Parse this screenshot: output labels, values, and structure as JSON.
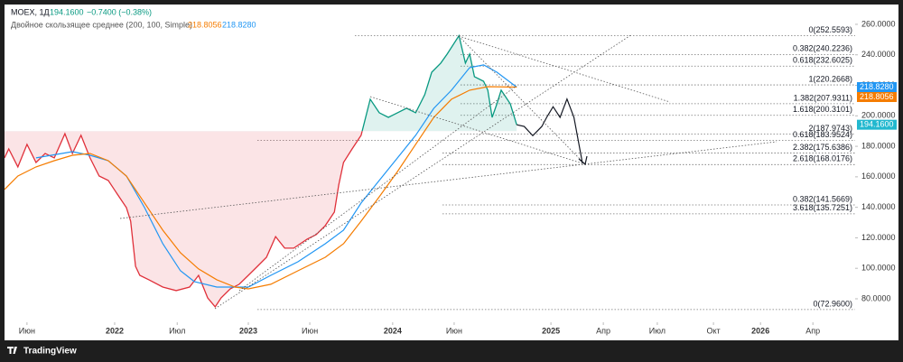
{
  "chart_data": {
    "type": "baseline",
    "legend": {
      "symbol": "MOEX, 1Д",
      "last": "194.1600",
      "change": "−0.7400 (−0.38%)",
      "indicator": "Двойное скользящее среднее (200, 100, Simple)",
      "ma200": "218.8056",
      "ma100": "218.8280"
    },
    "baseline": 190,
    "above_color": "#089981",
    "below_color": "#e0303a",
    "series": [
      {
        "color": "#e0303a",
        "x": [
          -206,
          -198,
          -181,
          -164,
          -147,
          -130,
          -113,
          -93,
          -79,
          -63,
          -46,
          -29,
          -12,
          5,
          22,
          30,
          39,
          47,
          64,
          90,
          115,
          140,
          157,
          174,
          188,
          199,
          216,
          233,
          250,
          267,
          284,
          301,
          318,
          335,
          360,
          377,
          394,
          411,
          419,
          428,
          444,
          461,
          478,
          495,
          512,
          529,
          546,
          563,
          580,
          593,
          610,
          622,
          644,
          656,
          664,
          673,
          690,
          698,
          706,
          715,
          723,
          740,
          752
        ],
        "values": [
          172.4,
          178.3,
          166.5,
          181.3,
          169.4,
          175.3,
          172.4,
          188.3,
          175.3,
          187.2,
          172.4,
          160.5,
          157.6,
          148.7,
          139.8,
          130.9,
          101.3,
          95.4,
          92.5,
          87.7,
          85.4,
          87.7,
          95.4,
          80.6,
          74.7,
          80.6,
          86.5,
          89.5,
          95.4,
          101.3,
          107.2,
          120.8,
          113.2,
          113.2,
          119.1,
          122.1,
          128,
          136.9,
          154.6,
          169.4,
          178.3,
          187.2,
          210.9,
          202,
          199,
          202,
          205,
          202,
          213.9,
          228.6,
          234.6,
          240.5,
          252.6,
          234.6,
          240.5,
          225.7,
          222.7,
          216.8,
          199,
          207.9,
          216.8,
          207.9,
          194.16
        ]
      },
      {
        "color": "#131722",
        "x": [
          752,
          766,
          782,
          799,
          808,
          820,
          833,
          846,
          859,
          875
        ],
        "values": [
          194.16,
          193,
          187,
          193,
          199,
          206,
          199,
          211,
          199,
          169
        ]
      },
      {
        "color": "#2196f3",
        "x": [
          -147,
          -79,
          -46,
          -12,
          22,
          56,
          90,
          123,
          149,
          191,
          225,
          250,
          292,
          343,
          394,
          428,
          461,
          495,
          529,
          563,
          597,
          630,
          664,
          690,
          715,
          752
        ],
        "values": [
          172.4,
          176.5,
          174.1,
          170.6,
          160.5,
          139.8,
          116.1,
          98.4,
          91.3,
          87.7,
          87.7,
          87.7,
          95.4,
          104.3,
          116.1,
          125,
          142.8,
          157.6,
          172.4,
          187.2,
          204.9,
          216.8,
          231.6,
          233.4,
          228.6,
          218.828
        ]
      },
      {
        "color": "#f57c00",
        "x": [
          -206,
          -181,
          -147,
          -113,
          -79,
          -46,
          -12,
          22,
          56,
          90,
          123,
          157,
          191,
          225,
          250,
          292,
          343,
          394,
          428,
          461,
          495,
          529,
          563,
          597,
          630,
          664,
          698,
          752
        ],
        "values": [
          151.7,
          160.5,
          166.5,
          170.6,
          174.1,
          175.3,
          170.6,
          160.5,
          142.8,
          125,
          110.2,
          99.6,
          92.5,
          87.7,
          86.5,
          89.5,
          98.4,
          107.2,
          116.1,
          130.9,
          146.9,
          163.5,
          181.3,
          199,
          210.9,
          216.8,
          219.1,
          218.8056
        ]
      }
    ],
    "fib_levels": [
      {
        "label": "0(252.5593)",
        "value": 252.5593
      },
      {
        "label": "0.382(240.2236)",
        "value": 240.2236
      },
      {
        "label": "0.618(232.6025)",
        "value": 232.6025
      },
      {
        "label": "1(220.2668)",
        "value": 220.2668
      },
      {
        "label": "1.382(207.9311)",
        "value": 207.9311
      },
      {
        "label": "1.618(200.3101)",
        "value": 200.3101
      },
      {
        "label": "2(187.9743)",
        "value": 187.9743
      },
      {
        "label": "0.618(183.9524)",
        "value": 183.9524
      },
      {
        "label": "2.382(175.6386)",
        "value": 175.6386
      },
      {
        "label": "2.618(168.0176)",
        "value": 168.0176
      },
      {
        "label": "0.382(141.5669)",
        "value": 141.5669
      },
      {
        "label": "3.618(135.7251)",
        "value": 135.7251
      },
      {
        "label": "0(72.9600)",
        "value": 72.96
      }
    ],
    "price_labels": [
      {
        "value": 218.828,
        "label": "218.8280",
        "color": "#2196f3"
      },
      {
        "value": 218.8056,
        "label": "218.8056",
        "color": "#f57c00"
      },
      {
        "value": 194.16,
        "label": "194.1600",
        "color": "#22b8cf"
      }
    ],
    "xlim": [
      -206,
      1385
    ],
    "xticks": [
      {
        "value": -164,
        "label": "Июн"
      },
      {
        "value": 0,
        "label": "2022"
      },
      {
        "value": 117,
        "label": "Июл"
      },
      {
        "value": 250,
        "label": "2023"
      },
      {
        "value": 365,
        "label": "Июн"
      },
      {
        "value": 520,
        "label": "2024"
      },
      {
        "value": 635,
        "label": "Июн"
      },
      {
        "value": 816,
        "label": "2025"
      },
      {
        "value": 914,
        "label": "Апр"
      },
      {
        "value": 1015,
        "label": "Июл"
      },
      {
        "value": 1120,
        "label": "Окт"
      },
      {
        "value": 1208,
        "label": "2026"
      },
      {
        "value": 1306,
        "label": "Апр"
      }
    ],
    "ylim": [
      64.6,
      273
    ],
    "yticks": [
      {
        "value": 80,
        "label": "80.0000"
      },
      {
        "value": 100,
        "label": "100.0000"
      },
      {
        "value": 120,
        "label": "120.0000"
      },
      {
        "value": 140,
        "label": "140.0000"
      },
      {
        "value": 160,
        "label": "160.0000"
      },
      {
        "value": 180,
        "label": "180.0000"
      },
      {
        "value": 200,
        "label": "200.0000"
      },
      {
        "value": 220,
        "label": "220.0000"
      },
      {
        "value": 240,
        "label": "240.0000"
      },
      {
        "value": 260,
        "label": "260.0000"
      }
    ]
  },
  "branding": "TradingView"
}
